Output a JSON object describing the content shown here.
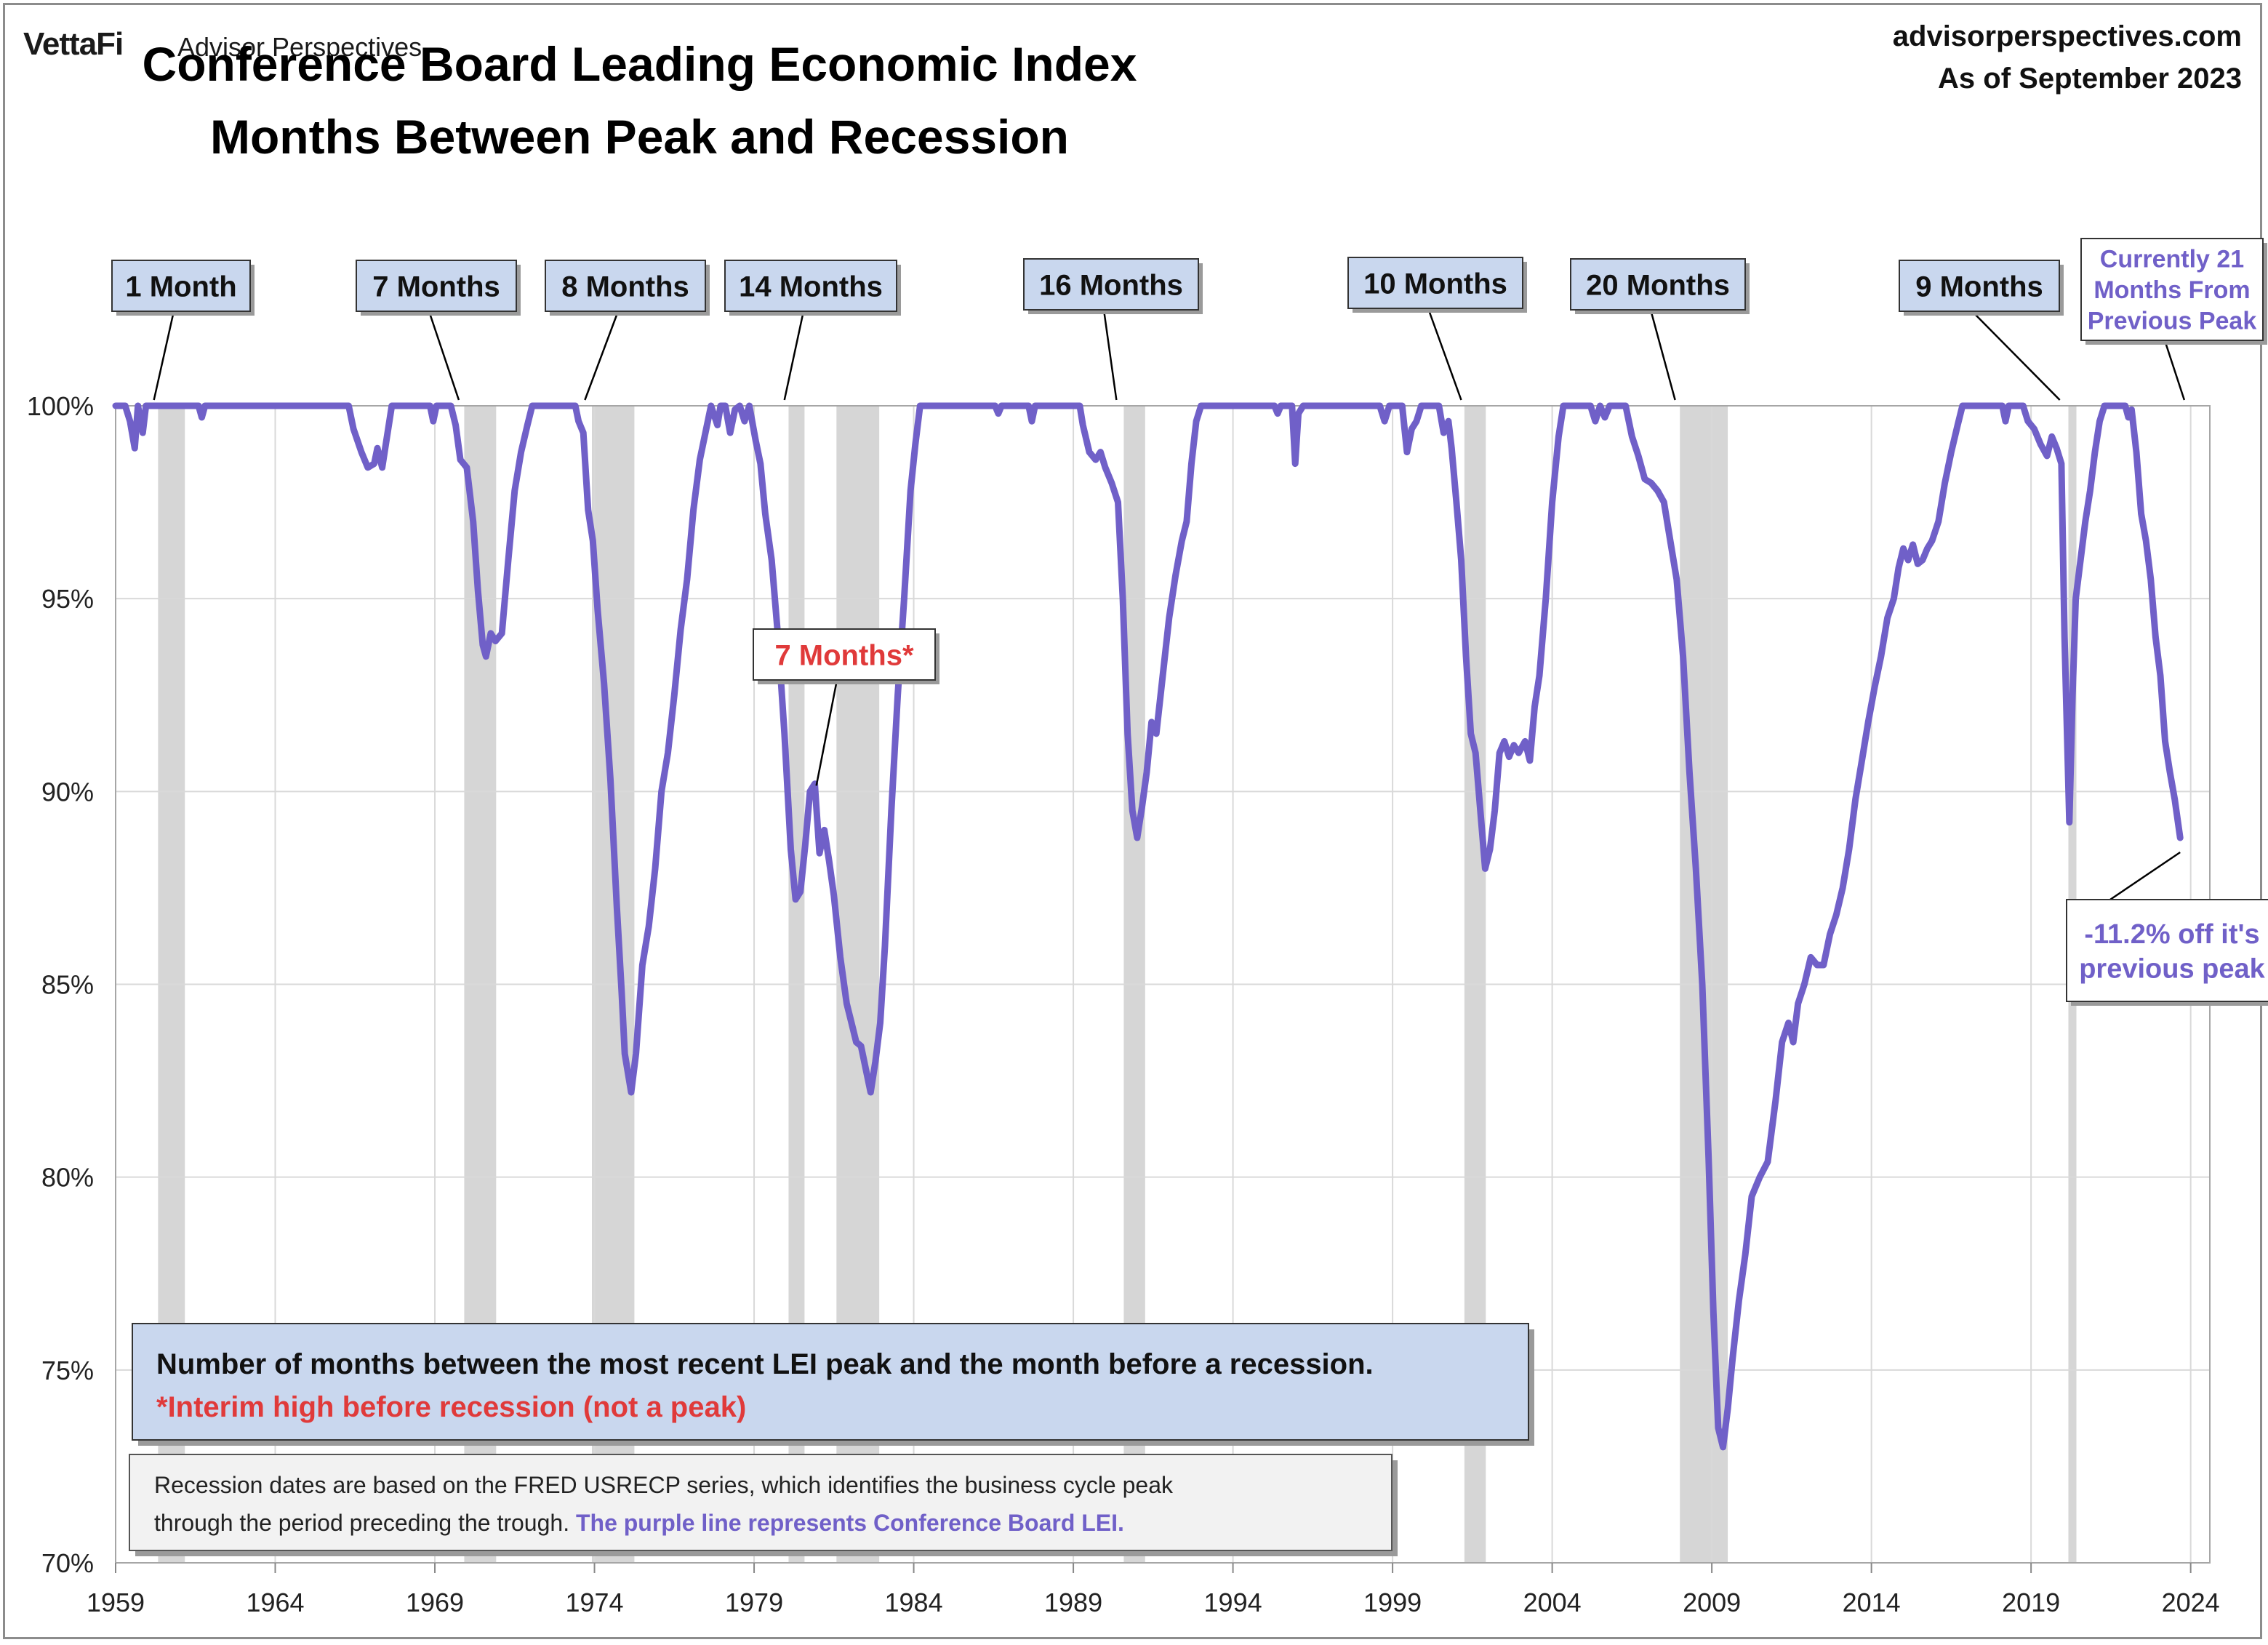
{
  "header": {
    "brand": "VettaFi",
    "brand_sub": "Advisor Perspectives",
    "title_line1": "Conference Board Leading Economic Index",
    "title_line2": "Months Between Peak and Recession",
    "source": "advisorperspectives.com",
    "as_of": "As of September 2023"
  },
  "colors": {
    "line": "#7060c8",
    "recession_band": "#d6d6d6",
    "grid": "#d9d9d9",
    "callout_fill": "#c9d7ee",
    "current_text": "#7060c8",
    "interim_text": "#e03a3a"
  },
  "chart_data": {
    "type": "line",
    "title": "Conference Board Leading Economic Index Months Between Peak and Recession",
    "xlabel": "",
    "ylabel": "",
    "xlim": [
      1959,
      2024.6
    ],
    "ylim": [
      70,
      100
    ],
    "x_ticks": [
      1959,
      1964,
      1969,
      1974,
      1979,
      1984,
      1989,
      1994,
      1999,
      2004,
      2009,
      2014,
      2019,
      2024
    ],
    "y_ticks": [
      70,
      75,
      80,
      85,
      90,
      95,
      100
    ],
    "y_tick_labels": [
      "70%",
      "75%",
      "80%",
      "85%",
      "90%",
      "95%",
      "100%"
    ],
    "grid": true,
    "recessions": [
      [
        1960.33,
        1961.17
      ],
      [
        1969.92,
        1970.92
      ],
      [
        1973.92,
        1975.25
      ],
      [
        1980.08,
        1980.58
      ],
      [
        1981.58,
        1982.92
      ],
      [
        1990.58,
        1991.25
      ],
      [
        2001.25,
        2001.92
      ],
      [
        2008.0,
        2009.5
      ],
      [
        2020.17,
        2020.42
      ]
    ],
    "series": [
      {
        "points": [
          [
            1959.0,
            100.0
          ],
          [
            1959.3,
            100.0
          ],
          [
            1959.45,
            99.6
          ],
          [
            1959.6,
            98.9
          ],
          [
            1959.7,
            100.0
          ],
          [
            1959.85,
            99.3
          ],
          [
            1959.95,
            100.0
          ],
          [
            1960.3,
            100.0
          ],
          [
            1961.6,
            100.0
          ],
          [
            1961.7,
            99.7
          ],
          [
            1961.8,
            100.0
          ],
          [
            1966.3,
            100.0
          ],
          [
            1966.45,
            99.4
          ],
          [
            1966.7,
            98.8
          ],
          [
            1966.9,
            98.4
          ],
          [
            1967.1,
            98.5
          ],
          [
            1967.2,
            98.9
          ],
          [
            1967.35,
            98.4
          ],
          [
            1967.5,
            99.2
          ],
          [
            1967.65,
            100.0
          ],
          [
            1968.85,
            100.0
          ],
          [
            1968.95,
            99.6
          ],
          [
            1969.05,
            100.0
          ],
          [
            1969.5,
            100.0
          ],
          [
            1969.65,
            99.5
          ],
          [
            1969.8,
            98.6
          ],
          [
            1970.0,
            98.4
          ],
          [
            1970.2,
            97.0
          ],
          [
            1970.35,
            95.2
          ],
          [
            1970.5,
            93.8
          ],
          [
            1970.6,
            93.5
          ],
          [
            1970.75,
            94.1
          ],
          [
            1970.9,
            93.9
          ],
          [
            1971.1,
            94.1
          ],
          [
            1971.3,
            96.0
          ],
          [
            1971.5,
            97.8
          ],
          [
            1971.7,
            98.8
          ],
          [
            1971.9,
            99.5
          ],
          [
            1972.05,
            100.0
          ],
          [
            1973.4,
            100.0
          ],
          [
            1973.5,
            99.6
          ],
          [
            1973.65,
            99.3
          ],
          [
            1973.8,
            97.3
          ],
          [
            1973.95,
            96.5
          ],
          [
            1974.1,
            94.7
          ],
          [
            1974.3,
            92.8
          ],
          [
            1974.5,
            90.3
          ],
          [
            1974.7,
            87.0
          ],
          [
            1974.85,
            84.8
          ],
          [
            1974.95,
            83.2
          ],
          [
            1975.05,
            82.7
          ],
          [
            1975.15,
            82.2
          ],
          [
            1975.3,
            83.2
          ],
          [
            1975.5,
            85.5
          ],
          [
            1975.7,
            86.5
          ],
          [
            1975.9,
            88.0
          ],
          [
            1976.1,
            90.0
          ],
          [
            1976.3,
            91.0
          ],
          [
            1976.5,
            92.5
          ],
          [
            1976.7,
            94.2
          ],
          [
            1976.9,
            95.5
          ],
          [
            1977.1,
            97.3
          ],
          [
            1977.3,
            98.6
          ],
          [
            1977.5,
            99.4
          ],
          [
            1977.65,
            100.0
          ],
          [
            1977.85,
            99.5
          ],
          [
            1977.95,
            100.0
          ],
          [
            1978.1,
            100.0
          ],
          [
            1978.25,
            99.3
          ],
          [
            1978.4,
            99.9
          ],
          [
            1978.55,
            100.0
          ],
          [
            1978.7,
            99.6
          ],
          [
            1978.85,
            100.0
          ],
          [
            1979.05,
            99.1
          ],
          [
            1979.2,
            98.5
          ],
          [
            1979.35,
            97.2
          ],
          [
            1979.55,
            96.0
          ],
          [
            1979.75,
            94.0
          ],
          [
            1979.95,
            91.5
          ],
          [
            1980.15,
            88.5
          ],
          [
            1980.3,
            87.2
          ],
          [
            1980.45,
            87.4
          ],
          [
            1980.6,
            88.6
          ],
          [
            1980.75,
            90.0
          ],
          [
            1980.9,
            90.2
          ],
          [
            1981.05,
            88.4
          ],
          [
            1981.2,
            89.0
          ],
          [
            1981.35,
            88.2
          ],
          [
            1981.5,
            87.3
          ],
          [
            1981.7,
            85.7
          ],
          [
            1981.9,
            84.5
          ],
          [
            1982.05,
            84.0
          ],
          [
            1982.2,
            83.5
          ],
          [
            1982.35,
            83.4
          ],
          [
            1982.5,
            82.8
          ],
          [
            1982.65,
            82.2
          ],
          [
            1982.8,
            83.0
          ],
          [
            1982.95,
            84.0
          ],
          [
            1983.1,
            86.0
          ],
          [
            1983.3,
            89.5
          ],
          [
            1983.5,
            92.5
          ],
          [
            1983.7,
            95.0
          ],
          [
            1983.9,
            97.8
          ],
          [
            1984.05,
            99.0
          ],
          [
            1984.2,
            100.0
          ],
          [
            1986.55,
            100.0
          ],
          [
            1986.65,
            99.8
          ],
          [
            1986.75,
            100.0
          ],
          [
            1987.6,
            100.0
          ],
          [
            1987.7,
            99.6
          ],
          [
            1987.8,
            100.0
          ],
          [
            1989.2,
            100.0
          ],
          [
            1989.3,
            99.5
          ],
          [
            1989.5,
            98.8
          ],
          [
            1989.7,
            98.6
          ],
          [
            1989.85,
            98.8
          ],
          [
            1990.0,
            98.4
          ],
          [
            1990.2,
            98.0
          ],
          [
            1990.4,
            97.5
          ],
          [
            1990.55,
            95.0
          ],
          [
            1990.7,
            91.5
          ],
          [
            1990.85,
            89.5
          ],
          [
            1991.0,
            88.8
          ],
          [
            1991.15,
            89.6
          ],
          [
            1991.3,
            90.5
          ],
          [
            1991.45,
            91.8
          ],
          [
            1991.6,
            91.5
          ],
          [
            1991.8,
            93.0
          ],
          [
            1992.0,
            94.5
          ],
          [
            1992.2,
            95.6
          ],
          [
            1992.4,
            96.5
          ],
          [
            1992.55,
            97.0
          ],
          [
            1992.7,
            98.5
          ],
          [
            1992.85,
            99.6
          ],
          [
            1993.0,
            100.0
          ],
          [
            1995.3,
            100.0
          ],
          [
            1995.4,
            99.8
          ],
          [
            1995.5,
            100.0
          ],
          [
            1995.85,
            100.0
          ],
          [
            1995.95,
            98.5
          ],
          [
            1996.05,
            99.8
          ],
          [
            1996.2,
            100.0
          ],
          [
            1998.6,
            100.0
          ],
          [
            1998.75,
            99.6
          ],
          [
            1998.9,
            100.0
          ],
          [
            1999.3,
            100.0
          ],
          [
            1999.45,
            98.8
          ],
          [
            1999.6,
            99.4
          ],
          [
            1999.75,
            99.6
          ],
          [
            1999.9,
            100.0
          ],
          [
            2000.45,
            100.0
          ],
          [
            2000.6,
            99.3
          ],
          [
            2000.75,
            99.6
          ],
          [
            2000.85,
            98.9
          ],
          [
            2001.0,
            97.5
          ],
          [
            2001.15,
            96.0
          ],
          [
            2001.3,
            93.5
          ],
          [
            2001.45,
            91.5
          ],
          [
            2001.6,
            91.0
          ],
          [
            2001.75,
            89.5
          ],
          [
            2001.9,
            88.0
          ],
          [
            2002.05,
            88.5
          ],
          [
            2002.2,
            89.5
          ],
          [
            2002.35,
            91.0
          ],
          [
            2002.5,
            91.3
          ],
          [
            2002.65,
            90.9
          ],
          [
            2002.8,
            91.2
          ],
          [
            2002.95,
            91.0
          ],
          [
            2003.15,
            91.3
          ],
          [
            2003.3,
            90.8
          ],
          [
            2003.45,
            92.2
          ],
          [
            2003.6,
            93.0
          ],
          [
            2003.8,
            95.0
          ],
          [
            2004.0,
            97.5
          ],
          [
            2004.2,
            99.2
          ],
          [
            2004.35,
            100.0
          ],
          [
            2005.2,
            100.0
          ],
          [
            2005.35,
            99.6
          ],
          [
            2005.5,
            100.0
          ],
          [
            2005.65,
            99.7
          ],
          [
            2005.8,
            100.0
          ],
          [
            2006.3,
            100.0
          ],
          [
            2006.5,
            99.2
          ],
          [
            2006.7,
            98.7
          ],
          [
            2006.9,
            98.1
          ],
          [
            2007.1,
            98.0
          ],
          [
            2007.3,
            97.8
          ],
          [
            2007.5,
            97.5
          ],
          [
            2007.7,
            96.5
          ],
          [
            2007.9,
            95.5
          ],
          [
            2008.1,
            93.5
          ],
          [
            2008.3,
            90.5
          ],
          [
            2008.5,
            88.0
          ],
          [
            2008.7,
            85.0
          ],
          [
            2008.9,
            80.5
          ],
          [
            2009.05,
            76.5
          ],
          [
            2009.2,
            73.5
          ],
          [
            2009.35,
            73.0
          ],
          [
            2009.5,
            74.0
          ],
          [
            2009.65,
            75.3
          ],
          [
            2009.85,
            76.8
          ],
          [
            2010.05,
            78.0
          ],
          [
            2010.25,
            79.5
          ],
          [
            2010.5,
            80.0
          ],
          [
            2010.75,
            80.4
          ],
          [
            2011.0,
            82.0
          ],
          [
            2011.2,
            83.5
          ],
          [
            2011.4,
            84.0
          ],
          [
            2011.55,
            83.5
          ],
          [
            2011.7,
            84.5
          ],
          [
            2011.9,
            85.0
          ],
          [
            2012.1,
            85.7
          ],
          [
            2012.3,
            85.5
          ],
          [
            2012.5,
            85.5
          ],
          [
            2012.7,
            86.3
          ],
          [
            2012.9,
            86.8
          ],
          [
            2013.1,
            87.5
          ],
          [
            2013.3,
            88.5
          ],
          [
            2013.5,
            89.8
          ],
          [
            2013.7,
            90.8
          ],
          [
            2013.9,
            91.8
          ],
          [
            2014.1,
            92.7
          ],
          [
            2014.3,
            93.5
          ],
          [
            2014.5,
            94.5
          ],
          [
            2014.7,
            95.0
          ],
          [
            2014.85,
            95.8
          ],
          [
            2015.0,
            96.3
          ],
          [
            2015.15,
            96.0
          ],
          [
            2015.3,
            96.4
          ],
          [
            2015.45,
            95.9
          ],
          [
            2015.6,
            96.0
          ],
          [
            2015.75,
            96.3
          ],
          [
            2015.9,
            96.5
          ],
          [
            2016.1,
            97.0
          ],
          [
            2016.3,
            98.0
          ],
          [
            2016.5,
            98.8
          ],
          [
            2016.7,
            99.5
          ],
          [
            2016.85,
            100.0
          ],
          [
            2018.1,
            100.0
          ],
          [
            2018.2,
            99.6
          ],
          [
            2018.3,
            100.0
          ],
          [
            2018.75,
            100.0
          ],
          [
            2018.9,
            99.6
          ],
          [
            2019.1,
            99.4
          ],
          [
            2019.3,
            99.0
          ],
          [
            2019.5,
            98.7
          ],
          [
            2019.65,
            99.2
          ],
          [
            2019.8,
            98.9
          ],
          [
            2019.95,
            98.5
          ],
          [
            2020.05,
            94.0
          ],
          [
            2020.2,
            89.2
          ],
          [
            2020.3,
            92.5
          ],
          [
            2020.4,
            95.0
          ],
          [
            2020.55,
            96.0
          ],
          [
            2020.7,
            97.0
          ],
          [
            2020.85,
            97.8
          ],
          [
            2021.0,
            98.8
          ],
          [
            2021.15,
            99.6
          ],
          [
            2021.3,
            100.0
          ],
          [
            2021.95,
            100.0
          ],
          [
            2022.05,
            99.7
          ],
          [
            2022.15,
            99.9
          ],
          [
            2022.3,
            98.8
          ],
          [
            2022.45,
            97.2
          ],
          [
            2022.6,
            96.5
          ],
          [
            2022.75,
            95.5
          ],
          [
            2022.9,
            94.0
          ],
          [
            2023.05,
            93.0
          ],
          [
            2023.2,
            91.3
          ],
          [
            2023.35,
            90.5
          ],
          [
            2023.5,
            89.8
          ],
          [
            2023.67,
            88.8
          ]
        ]
      }
    ],
    "annotations": [
      {
        "text": "1 Month",
        "x": 1960.2
      },
      {
        "text": "7 Months",
        "x": 1969.75
      },
      {
        "text": "8 Months",
        "x": 1973.7
      },
      {
        "text": "14 Months",
        "x": 1979.95
      },
      {
        "text": "16 Months",
        "x": 1990.35
      },
      {
        "text": "10 Months",
        "x": 2001.15
      },
      {
        "text": "20 Months",
        "x": 2007.85
      },
      {
        "text": "9 Months",
        "x": 2019.9
      },
      {
        "text": "Currently 21 Months From Previous Peak",
        "x": 2023.8
      },
      {
        "text": "7 Months*",
        "x": 1980.95,
        "y": 90.0
      },
      {
        "text": "-11.2% off it's previous peak",
        "x": 2023.67,
        "y": 88.8
      }
    ]
  },
  "notes": {
    "key_line1": "Number of months between the most recent LEI peak and the month before a recession.",
    "key_line2": "*Interim high before recession (not a peak)",
    "footnote_part1": "Recession dates are based on the FRED USRECP series, which identifies the business cycle peak",
    "footnote_part2": "through the period preceding the trough.",
    "footnote_part3": " The purple line represents Conference Board LEI."
  }
}
